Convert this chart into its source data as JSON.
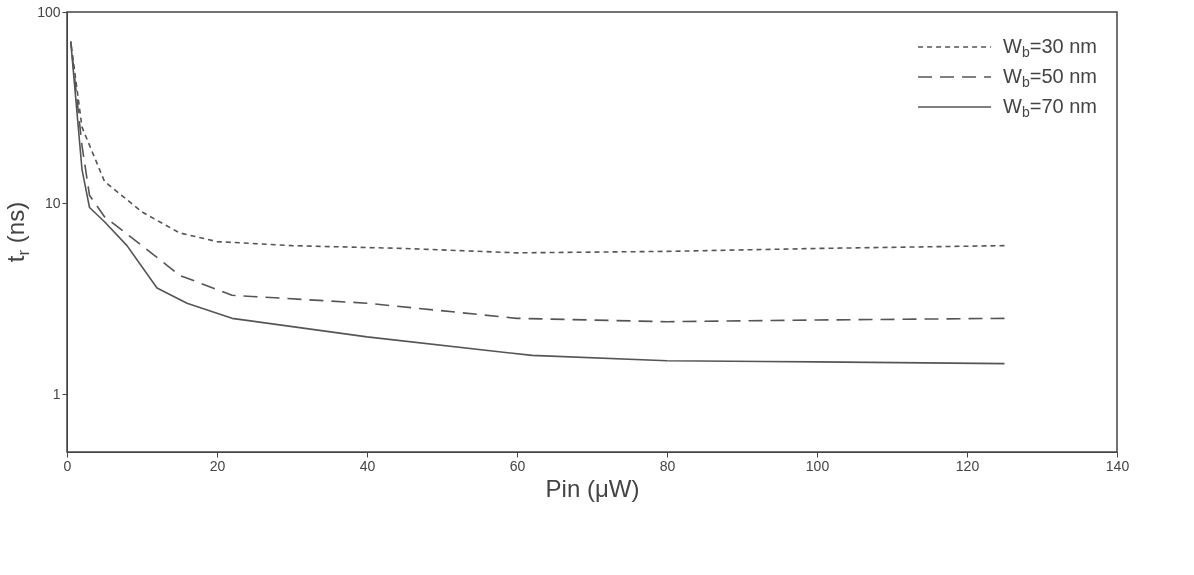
{
  "chart_data": {
    "type": "line",
    "xlabel": "Pin (μW)",
    "ylabel": "t$_{r}$ (ns)",
    "xlim": [
      0,
      140
    ],
    "xticks": [
      0,
      20,
      40,
      60,
      80,
      100,
      120,
      140
    ],
    "ylim": [
      0.5,
      100
    ],
    "yticks": [
      1,
      10,
      100
    ],
    "log": "y",
    "grid": false,
    "legend": "top right",
    "marker": "none",
    "series": [
      {
        "name": "W$_{b}$=30 nm",
        "color": "#555555",
        "line_style": "dotted",
        "x": [
          0.5,
          2,
          5,
          10,
          15,
          20,
          30,
          45,
          60,
          80,
          100,
          125
        ],
        "values": [
          70,
          25,
          13,
          9,
          7,
          6.3,
          6,
          5.8,
          5.5,
          5.6,
          5.8,
          6
        ]
      },
      {
        "name": "W$_{b}$=50 nm",
        "color": "#555555",
        "line_style": "dashed",
        "x": [
          0.5,
          2,
          3,
          5,
          10,
          15,
          22,
          40,
          60,
          80,
          100,
          125
        ],
        "values": [
          70,
          20,
          11,
          8.5,
          6,
          4.2,
          3.3,
          3.0,
          2.5,
          2.4,
          2.45,
          2.5
        ]
      },
      {
        "name": "W$_{b}$=70 nm",
        "color": "#555555",
        "line_style": "solid",
        "x": [
          0.5,
          2,
          3,
          5,
          8,
          12,
          16,
          22,
          40,
          62,
          80,
          100,
          125
        ],
        "values": [
          70,
          15,
          9.5,
          8,
          6,
          3.6,
          3,
          2.5,
          2.0,
          1.6,
          1.5,
          1.48,
          1.45
        ]
      }
    ]
  }
}
